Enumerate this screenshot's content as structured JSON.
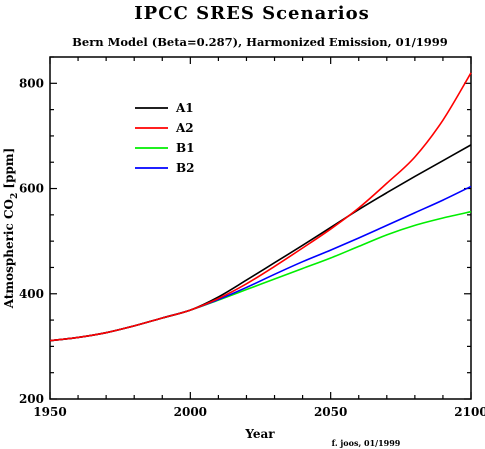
{
  "chart_data": {
    "type": "line",
    "title": "IPCC SRES Scenarios",
    "subtitle": "Bern Model (Beta=0.287), Harmonized Emission, 01/1999",
    "xlabel": "Year",
    "ylabel_main": "Atmospheric CO",
    "ylabel_sub": "2",
    "ylabel_unit": " [ppm]",
    "xlim": [
      1950,
      2100
    ],
    "ylim": [
      200,
      850
    ],
    "x_ticks": [
      1950,
      2000,
      2050,
      2100
    ],
    "y_ticks": [
      200,
      400,
      600,
      800
    ],
    "legend_position": "top-left",
    "credit": "f. joos, 01/1999",
    "x": [
      1950,
      1960,
      1970,
      1980,
      1990,
      2000,
      2010,
      2020,
      2030,
      2040,
      2050,
      2060,
      2070,
      2080,
      2090,
      2100
    ],
    "series": [
      {
        "name": "A1",
        "color": "#000000",
        "values": [
          311,
          317,
          326,
          339,
          354,
          369,
          394,
          426,
          459,
          492,
          526,
          560,
          592,
          623,
          653,
          683
        ]
      },
      {
        "name": "A2",
        "color": "#ff0000",
        "values": [
          311,
          317,
          326,
          339,
          354,
          369,
          391,
          419,
          452,
          487,
          523,
          563,
          610,
          660,
          730,
          820
        ]
      },
      {
        "name": "B1",
        "color": "#00ee00",
        "values": [
          311,
          317,
          326,
          339,
          354,
          369,
          388,
          408,
          428,
          448,
          468,
          490,
          512,
          530,
          544,
          556
        ]
      },
      {
        "name": "B2",
        "color": "#0000ff",
        "values": [
          311,
          317,
          326,
          339,
          354,
          369,
          389,
          412,
          437,
          461,
          483,
          506,
          530,
          554,
          578,
          604
        ]
      }
    ]
  }
}
